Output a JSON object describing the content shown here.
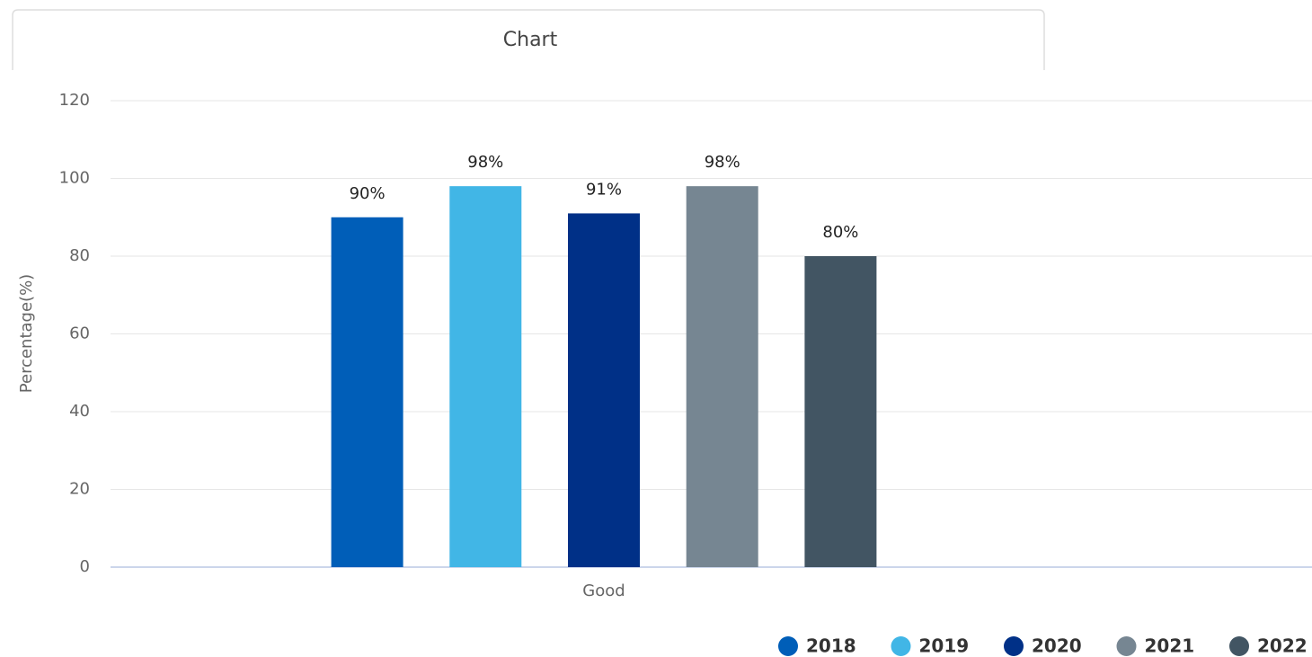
{
  "tab": {
    "label": "Chart"
  },
  "chart_data": {
    "type": "bar",
    "y_label": "Percentage(%)",
    "categories": [
      "Good"
    ],
    "series": [
      {
        "name": "2018",
        "color": "#005eb8",
        "values": [
          90
        ],
        "value_labels": [
          "90%"
        ]
      },
      {
        "name": "2019",
        "color": "#41b6e6",
        "values": [
          98
        ],
        "value_labels": [
          "98%"
        ]
      },
      {
        "name": "2020",
        "color": "#003087",
        "values": [
          91
        ],
        "value_labels": [
          "91%"
        ]
      },
      {
        "name": "2021",
        "color": "#768692",
        "values": [
          98
        ],
        "value_labels": [
          "98%"
        ]
      },
      {
        "name": "2022",
        "color": "#425563",
        "values": [
          80
        ],
        "value_labels": [
          "80%"
        ]
      }
    ],
    "ylim": [
      0,
      120
    ],
    "yticks": [
      0,
      20,
      40,
      60,
      80,
      100,
      120
    ],
    "grid": true,
    "legend": "bottom-right"
  }
}
